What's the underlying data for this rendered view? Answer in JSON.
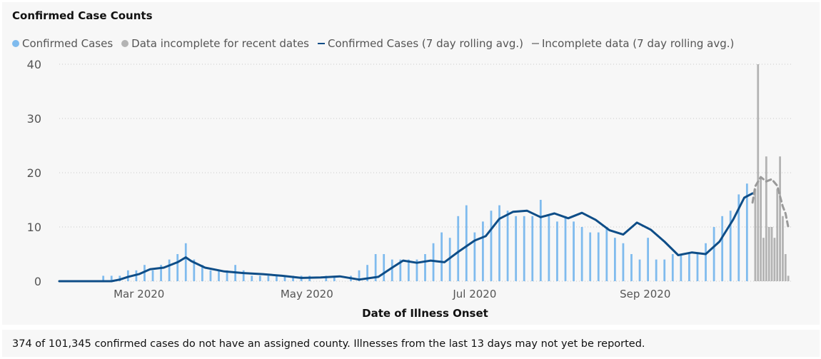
{
  "chart_data": {
    "type": "bar",
    "title": "Confirmed Case Counts",
    "xlabel": "Date of Illness Onset",
    "ylabel": "",
    "ylim": [
      0,
      40
    ],
    "y_ticks": [
      0,
      10,
      20,
      30,
      40
    ],
    "grid": "horizontal dotted",
    "legend_position": "top-left",
    "x_ticks": [
      {
        "label": "Mar 2020",
        "date": "2020-03-01"
      },
      {
        "label": "May 2020",
        "date": "2020-05-01"
      },
      {
        "label": "Jul 2020",
        "date": "2020-07-01"
      },
      {
        "label": "Sep 2020",
        "date": "2020-09-01"
      }
    ],
    "colors": {
      "confirmed_bars": "#7fbbee",
      "incomplete_bars": "#b3b3b3",
      "confirmed_avg": "#0e4d87",
      "incomplete_avg": "#9a9a9a"
    },
    "series": [
      {
        "name": "Confirmed Cases",
        "kind": "bar",
        "x": [
          "2020-02-17",
          "2020-02-20",
          "2020-02-23",
          "2020-02-26",
          "2020-02-29",
          "2020-03-03",
          "2020-03-06",
          "2020-03-09",
          "2020-03-12",
          "2020-03-15",
          "2020-03-18",
          "2020-03-21",
          "2020-03-24",
          "2020-03-27",
          "2020-03-30",
          "2020-04-02",
          "2020-04-05",
          "2020-04-08",
          "2020-04-11",
          "2020-04-14",
          "2020-04-17",
          "2020-04-20",
          "2020-04-23",
          "2020-04-26",
          "2020-04-29",
          "2020-05-02",
          "2020-05-05",
          "2020-05-08",
          "2020-05-11",
          "2020-05-14",
          "2020-05-17",
          "2020-05-20",
          "2020-05-23",
          "2020-05-26",
          "2020-05-29",
          "2020-06-01",
          "2020-06-04",
          "2020-06-07",
          "2020-06-10",
          "2020-06-13",
          "2020-06-16",
          "2020-06-19",
          "2020-06-22",
          "2020-06-25",
          "2020-06-28",
          "2020-07-01",
          "2020-07-04",
          "2020-07-07",
          "2020-07-10",
          "2020-07-13",
          "2020-07-16",
          "2020-07-19",
          "2020-07-22",
          "2020-07-25",
          "2020-07-28",
          "2020-07-31",
          "2020-08-03",
          "2020-08-06",
          "2020-08-09",
          "2020-08-12",
          "2020-08-15",
          "2020-08-18",
          "2020-08-21",
          "2020-08-24",
          "2020-08-27",
          "2020-08-30",
          "2020-09-02",
          "2020-09-05",
          "2020-09-08",
          "2020-09-11",
          "2020-09-14",
          "2020-09-17",
          "2020-09-20",
          "2020-09-23",
          "2020-09-26",
          "2020-09-29",
          "2020-10-02",
          "2020-10-05",
          "2020-10-08"
        ],
        "values": [
          1,
          1,
          1,
          2,
          2,
          3,
          2,
          3,
          4,
          5,
          7,
          4,
          3,
          2,
          2,
          2,
          3,
          2,
          1,
          1,
          1,
          1,
          1,
          1,
          1,
          1,
          0,
          1,
          1,
          0,
          1,
          2,
          3,
          5,
          5,
          4,
          4,
          4,
          4,
          5,
          7,
          9,
          8,
          12,
          14,
          9,
          11,
          13,
          14,
          13,
          12,
          12,
          12,
          15,
          12,
          11,
          12,
          11,
          10,
          9,
          9,
          10,
          8,
          7,
          5,
          4,
          8,
          4,
          4,
          5,
          5,
          5,
          5,
          7,
          10,
          12,
          13,
          16,
          18
        ]
      },
      {
        "name": "Data incomplete for recent dates",
        "kind": "bar",
        "x": [
          "2020-10-11",
          "2020-10-12",
          "2020-10-13",
          "2020-10-14",
          "2020-10-15",
          "2020-10-16",
          "2020-10-17",
          "2020-10-18",
          "2020-10-19",
          "2020-10-20",
          "2020-10-21",
          "2020-10-22",
          "2020-10-23"
        ],
        "values": [
          17,
          40,
          19,
          8,
          23,
          10,
          10,
          8,
          17,
          23,
          12,
          5,
          1
        ]
      },
      {
        "name": "Confirmed Cases (7 day rolling avg.)",
        "kind": "line",
        "x": [
          "2020-02-01",
          "2020-02-20",
          "2020-02-23",
          "2020-02-26",
          "2020-03-01",
          "2020-03-05",
          "2020-03-10",
          "2020-03-15",
          "2020-03-18",
          "2020-03-20",
          "2020-03-25",
          "2020-04-01",
          "2020-04-08",
          "2020-04-15",
          "2020-04-22",
          "2020-04-29",
          "2020-05-06",
          "2020-05-13",
          "2020-05-20",
          "2020-05-27",
          "2020-06-01",
          "2020-06-05",
          "2020-06-10",
          "2020-06-15",
          "2020-06-20",
          "2020-06-25",
          "2020-07-01",
          "2020-07-05",
          "2020-07-10",
          "2020-07-15",
          "2020-07-20",
          "2020-07-25",
          "2020-07-30",
          "2020-08-04",
          "2020-08-09",
          "2020-08-14",
          "2020-08-19",
          "2020-08-24",
          "2020-08-29",
          "2020-09-03",
          "2020-09-08",
          "2020-09-13",
          "2020-09-18",
          "2020-09-23",
          "2020-09-28",
          "2020-10-03",
          "2020-10-07",
          "2020-10-10"
        ],
        "values": [
          0,
          0,
          0.3,
          0.8,
          1.3,
          2.2,
          2.5,
          3.5,
          4.4,
          3.7,
          2.5,
          1.8,
          1.5,
          1.3,
          1.0,
          0.6,
          0.7,
          0.9,
          0.3,
          0.8,
          2.5,
          3.8,
          3.4,
          3.8,
          3.5,
          5.4,
          7.5,
          8.3,
          11.5,
          12.8,
          13.0,
          11.8,
          12.5,
          11.6,
          12.6,
          11.3,
          9.4,
          8.6,
          10.8,
          9.5,
          7.3,
          4.8,
          5.3,
          5.0,
          7.3,
          11.4,
          15.4,
          16.2
        ]
      },
      {
        "name": "Incomplete data (7 day rolling avg.)",
        "kind": "line",
        "x": [
          "2020-10-10",
          "2020-10-11",
          "2020-10-13",
          "2020-10-15",
          "2020-10-17",
          "2020-10-19",
          "2020-10-21",
          "2020-10-22",
          "2020-10-23"
        ],
        "values": [
          14.5,
          17.5,
          19.2,
          18.4,
          18.8,
          17.6,
          13.8,
          12.5,
          10.0
        ]
      }
    ]
  },
  "footnote": "374 of 101,345 confirmed cases do not have an assigned county. Illnesses from the last 13 days may not yet be reported."
}
